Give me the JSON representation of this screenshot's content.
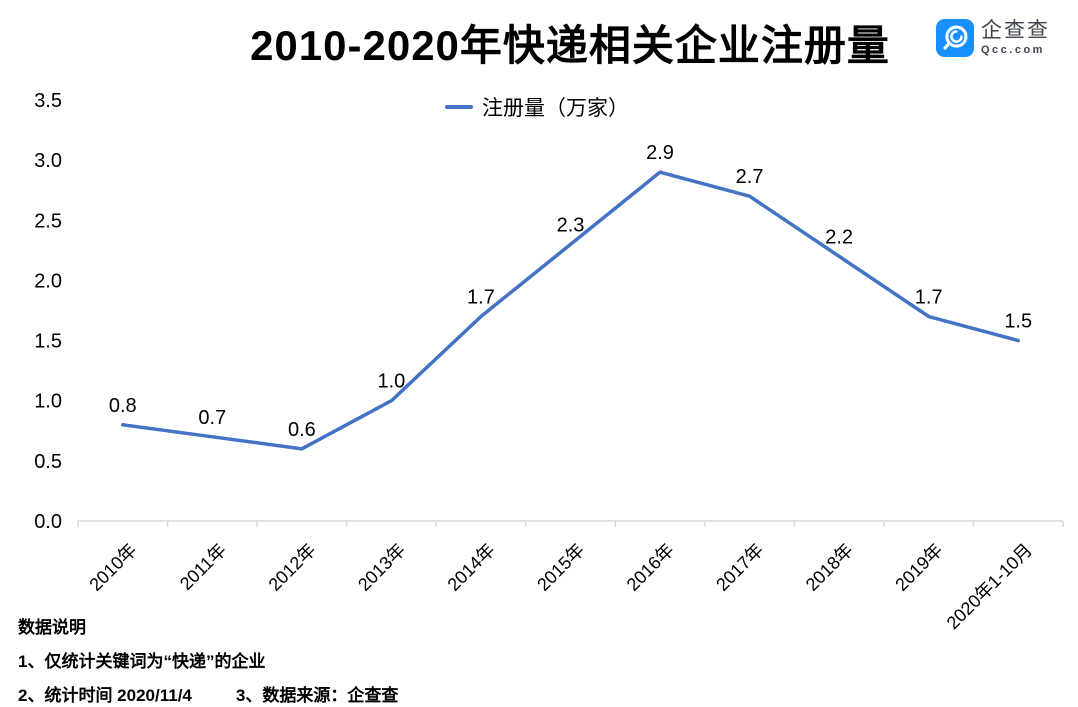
{
  "title": "2010-2020年快递相关企业注册量",
  "logo": {
    "name": "企查查",
    "domain": "Qcc.com",
    "brand_color": "#1990FF"
  },
  "legend": {
    "label": "注册量（万家）"
  },
  "footnotes": {
    "heading": "数据说明",
    "note1": "1、仅统计关键词为“快递”的企业",
    "note2": "2、统计时间 2020/11/4",
    "note3": "3、数据来源：企查查"
  },
  "chart_data": {
    "type": "line",
    "title": "2010-2020年快递相关企业注册量",
    "series_name": "注册量（万家）",
    "categories": [
      "2010年",
      "2011年",
      "2012年",
      "2013年",
      "2014年",
      "2015年",
      "2016年",
      "2017年",
      "2018年",
      "2019年",
      "2020年1-10月"
    ],
    "values": [
      0.8,
      0.7,
      0.6,
      1.0,
      1.7,
      2.3,
      2.9,
      2.7,
      2.2,
      1.7,
      1.5
    ],
    "data_labels": [
      "0.8",
      "0.7",
      "0.6",
      "1.0",
      "1.7",
      "2.3",
      "2.9",
      "2.7",
      "2.2",
      "1.7",
      "1.5"
    ],
    "ylim": [
      0.0,
      3.5
    ],
    "ytick_labels": [
      "0.0",
      "0.5",
      "1.0",
      "1.5",
      "2.0",
      "2.5",
      "3.0",
      "3.5"
    ],
    "grid": false,
    "legend_position": "top-center",
    "line_color": "#4472C4",
    "axis_color": "#D9D9D9",
    "label_color": "#000000"
  }
}
